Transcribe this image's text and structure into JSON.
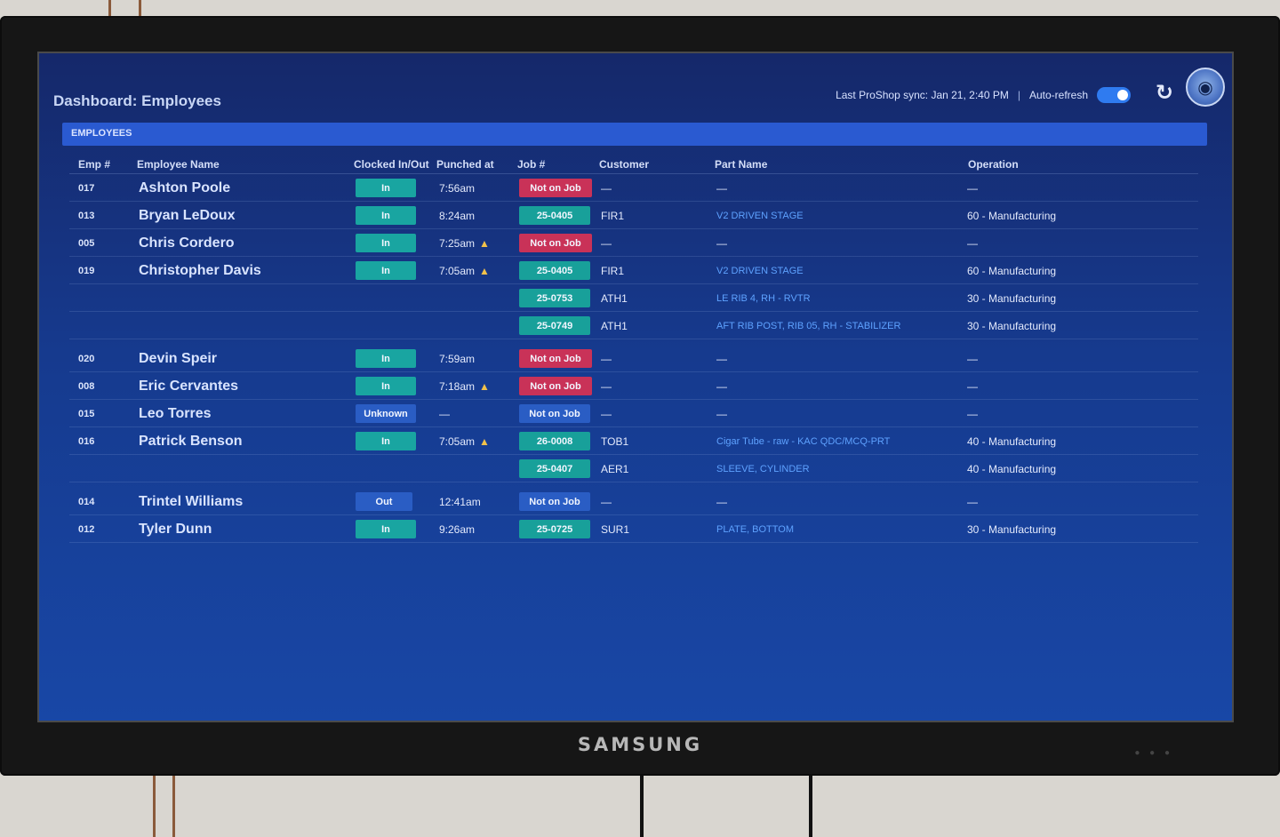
{
  "header": {
    "title": "Dashboard: Employees",
    "sync_text": "Last ProShop sync: Jan 21, 2:40 PM",
    "separator": "|",
    "auto_refresh_label": "Auto-refresh",
    "auto_refresh_on": true,
    "refresh_icon": "refresh-icon",
    "avatar_icon": "tiger-avatar-icon"
  },
  "section": {
    "label": "EMPLOYEES"
  },
  "columns": {
    "emp": "Emp #",
    "name": "Employee Name",
    "clock": "Clocked In/Out",
    "punched": "Punched at",
    "job": "Job #",
    "customer": "Customer",
    "part": "Part Name",
    "operation": "Operation"
  },
  "rows": [
    {
      "emp": "017",
      "name": "Ashton Poole",
      "clock": "In",
      "punched": "7:56am",
      "warn": false,
      "job": "Not on Job",
      "job_status": "notjob",
      "customer": "—",
      "part": "—",
      "operation": "—"
    },
    {
      "emp": "013",
      "name": "Bryan LeDoux",
      "clock": "In",
      "punched": "8:24am",
      "warn": false,
      "job": "25-0405",
      "job_status": "job",
      "customer": "FIR1",
      "part": "V2 DRIVEN STAGE",
      "operation": "60 - Manufacturing"
    },
    {
      "emp": "005",
      "name": "Chris Cordero",
      "clock": "In",
      "punched": "7:25am",
      "warn": true,
      "job": "Not on Job",
      "job_status": "notjob",
      "customer": "—",
      "part": "—",
      "operation": "—"
    },
    {
      "emp": "019",
      "name": "Christopher Davis",
      "clock": "In",
      "punched": "7:05am",
      "warn": true,
      "job": "25-0405",
      "job_status": "job",
      "customer": "FIR1",
      "part": "V2 DRIVEN STAGE",
      "operation": "60 - Manufacturing"
    },
    {
      "emp": "",
      "name": "",
      "clock": "",
      "punched": "",
      "warn": false,
      "job": "25-0753",
      "job_status": "job",
      "customer": "ATH1",
      "part": "LE RIB 4, RH - RVTR",
      "operation": "30 - Manufacturing"
    },
    {
      "emp": "",
      "name": "",
      "clock": "",
      "punched": "",
      "warn": false,
      "job": "25-0749",
      "job_status": "job",
      "customer": "ATH1",
      "part": "AFT RIB POST, RIB 05, RH - STABILIZER",
      "operation": "30 - Manufacturing"
    },
    {
      "emp": "020",
      "name": "Devin Speir",
      "clock": "In",
      "punched": "7:59am",
      "warn": false,
      "job": "Not on Job",
      "job_status": "notjob",
      "customer": "—",
      "part": "—",
      "operation": "—",
      "gap": true
    },
    {
      "emp": "008",
      "name": "Eric Cervantes",
      "clock": "In",
      "punched": "7:18am",
      "warn": true,
      "job": "Not on Job",
      "job_status": "notjob",
      "customer": "—",
      "part": "—",
      "operation": "—"
    },
    {
      "emp": "015",
      "name": "Leo Torres",
      "clock": "Unknown",
      "punched": "—",
      "warn": false,
      "job": "Not on Job",
      "job_status": "notjob-blue",
      "customer": "—",
      "part": "—",
      "operation": "—"
    },
    {
      "emp": "016",
      "name": "Patrick Benson",
      "clock": "In",
      "punched": "7:05am",
      "warn": true,
      "job": "26-0008",
      "job_status": "job",
      "customer": "TOB1",
      "part": "Cigar Tube - raw - KAC QDC/MCQ-PRT",
      "operation": "40 - Manufacturing"
    },
    {
      "emp": "",
      "name": "",
      "clock": "",
      "punched": "",
      "warn": false,
      "job": "25-0407",
      "job_status": "job",
      "customer": "AER1",
      "part": "SLEEVE, CYLINDER",
      "operation": "40 - Manufacturing"
    },
    {
      "emp": "014",
      "name": "Trintel Williams",
      "clock": "Out",
      "punched": "12:41am",
      "warn": false,
      "job": "Not on Job",
      "job_status": "notjob-blue",
      "customer": "—",
      "part": "—",
      "operation": "—",
      "gap": true
    },
    {
      "emp": "012",
      "name": "Tyler Dunn",
      "clock": "In",
      "punched": "9:26am",
      "warn": false,
      "job": "25-0725",
      "job_status": "job",
      "customer": "SUR1",
      "part": "PLATE, BOTTOM",
      "operation": "30 - Manufacturing"
    }
  ],
  "monitor": {
    "brand": "SAMSUNG"
  }
}
